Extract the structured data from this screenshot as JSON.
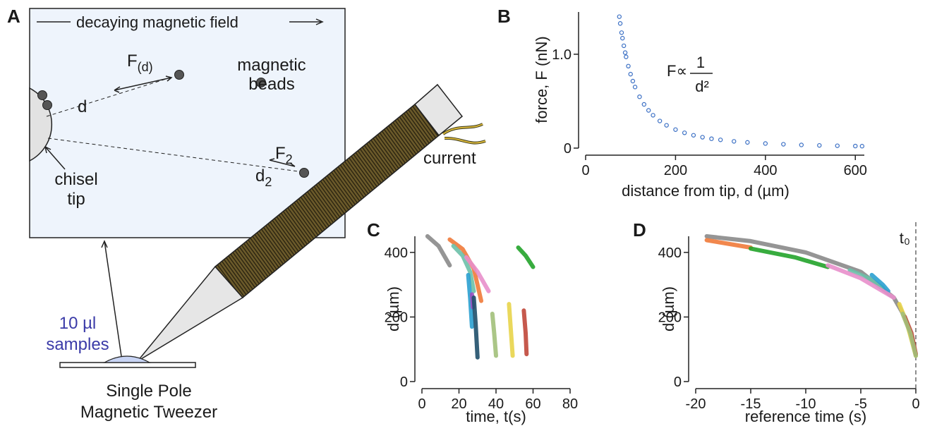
{
  "diagram": {
    "panel_label": "A",
    "field_label": "decaying magnetic field",
    "force_d": "F",
    "force_d_sub": "(d)",
    "distance_d": "d",
    "force_2": "F",
    "force_2_sub": "2",
    "distance_2": "d",
    "distance_2_sub": "2",
    "beads_label": [
      "magnetic",
      "beads"
    ],
    "tip_label": [
      "chisel",
      "tip"
    ],
    "current_label": "current",
    "sample_label": [
      "10 µl",
      "samples"
    ],
    "device_label": [
      "Single Pole",
      "Magnetic Tweezer"
    ]
  },
  "chart_data": [
    {
      "type": "scatter",
      "panel_label": "B",
      "xlabel": "distance from tip, d (µm)",
      "ylabel": "force, F (nN)",
      "equation": {
        "lhs": "F∝",
        "numerator": "1",
        "denominator": "d²"
      },
      "xlim": [
        0,
        620
      ],
      "ylim": [
        0,
        1.45
      ],
      "xticks": [
        0,
        200,
        400,
        600
      ],
      "yticks": [
        0,
        {
          "value": 1,
          "label": "1.0"
        }
      ],
      "series": [
        {
          "color": "#3a6fc4",
          "x": [
            75,
            77,
            80,
            82,
            85,
            88,
            90,
            95,
            100,
            105,
            110,
            120,
            130,
            140,
            150,
            165,
            180,
            200,
            220,
            240,
            260,
            280,
            300,
            330,
            360,
            400,
            440,
            480,
            520,
            560,
            600,
            615
          ],
          "values": [
            1.4,
            1.328,
            1.23,
            1.171,
            1.09,
            1.017,
            0.972,
            0.873,
            0.788,
            0.714,
            0.651,
            0.547,
            0.466,
            0.402,
            0.35,
            0.289,
            0.243,
            0.197,
            0.163,
            0.137,
            0.116,
            0.1,
            0.088,
            0.072,
            0.061,
            0.049,
            0.041,
            0.034,
            0.029,
            0.025,
            0.022,
            0.021
          ]
        }
      ]
    },
    {
      "type": "line",
      "panel_label": "C",
      "xlabel": "time, t(s)",
      "ylabel": "d (µm)",
      "xlim": [
        0,
        80
      ],
      "ylim": [
        0,
        450
      ],
      "xticks": [
        0,
        20,
        40,
        60,
        80
      ],
      "yticks": [
        0,
        200,
        400
      ],
      "series": [
        {
          "color": "#8a8a8a",
          "x": [
            3,
            9,
            15
          ],
          "values": [
            450,
            420,
            360
          ]
        },
        {
          "color": "#f07a3a",
          "x": [
            15,
            22,
            28,
            32
          ],
          "values": [
            440,
            410,
            350,
            250
          ]
        },
        {
          "color": "#6cc0a8",
          "x": [
            17,
            22,
            26,
            28
          ],
          "values": [
            420,
            390,
            340,
            280
          ]
        },
        {
          "color": "#e88fcb",
          "x": [
            24,
            30,
            36
          ],
          "values": [
            385,
            340,
            280
          ]
        },
        {
          "color": "#2aa0d0",
          "x": [
            25,
            26,
            27
          ],
          "values": [
            330,
            260,
            170
          ]
        },
        {
          "color": "#9a4fc0",
          "x": [
            27,
            27.5
          ],
          "values": [
            270,
            230
          ]
        },
        {
          "color": "#1f4f6a",
          "x": [
            28,
            29,
            30
          ],
          "values": [
            260,
            180,
            75
          ]
        },
        {
          "color": "#a2c07a",
          "x": [
            38,
            39,
            40
          ],
          "values": [
            210,
            150,
            80
          ]
        },
        {
          "color": "#e8d44a",
          "x": [
            47,
            48,
            49
          ],
          "values": [
            240,
            160,
            80
          ]
        },
        {
          "color": "#c0473a",
          "x": [
            55,
            56,
            56.5
          ],
          "values": [
            220,
            150,
            85
          ]
        },
        {
          "color": "#22a32a",
          "x": [
            52,
            56,
            60
          ],
          "values": [
            415,
            390,
            355
          ]
        }
      ]
    },
    {
      "type": "line",
      "panel_label": "D",
      "xlabel": "reference time (s)",
      "ylabel": "d (µm)",
      "xlim": [
        -20,
        0
      ],
      "ylim": [
        0,
        450
      ],
      "xticks": [
        -20,
        -15,
        -10,
        -5,
        0
      ],
      "yticks": [
        0,
        200,
        400
      ],
      "vline": 0,
      "vline_label": "t₀",
      "series": [
        {
          "color": "#8a8a8a",
          "x": [
            -19,
            -15,
            -10,
            -5,
            -2,
            -1,
            -0.3,
            0
          ],
          "values": [
            450,
            435,
            400,
            340,
            260,
            200,
            130,
            80
          ]
        },
        {
          "color": "#f07a3a",
          "x": [
            -19,
            -15
          ],
          "values": [
            438,
            415
          ]
        },
        {
          "color": "#22a32a",
          "x": [
            -15,
            -11,
            -8
          ],
          "values": [
            412,
            385,
            355
          ]
        },
        {
          "color": "#6cc0a8",
          "x": [
            -6,
            -4,
            -3
          ],
          "values": [
            345,
            315,
            290
          ]
        },
        {
          "color": "#2aa0d0",
          "x": [
            -4,
            -3,
            -2.5
          ],
          "values": [
            330,
            300,
            280
          ]
        },
        {
          "color": "#e88fcb",
          "x": [
            -8,
            -5,
            -2
          ],
          "values": [
            360,
            320,
            260
          ]
        },
        {
          "color": "#e8d44a",
          "x": [
            -1.5,
            -0.8,
            0
          ],
          "values": [
            240,
            180,
            80
          ]
        },
        {
          "color": "#c0473a",
          "x": [
            -1,
            -0.4,
            0
          ],
          "values": [
            200,
            150,
            85
          ]
        },
        {
          "color": "#a2c07a",
          "x": [
            -1.2,
            -0.5,
            0
          ],
          "values": [
            210,
            150,
            80
          ]
        }
      ]
    }
  ]
}
